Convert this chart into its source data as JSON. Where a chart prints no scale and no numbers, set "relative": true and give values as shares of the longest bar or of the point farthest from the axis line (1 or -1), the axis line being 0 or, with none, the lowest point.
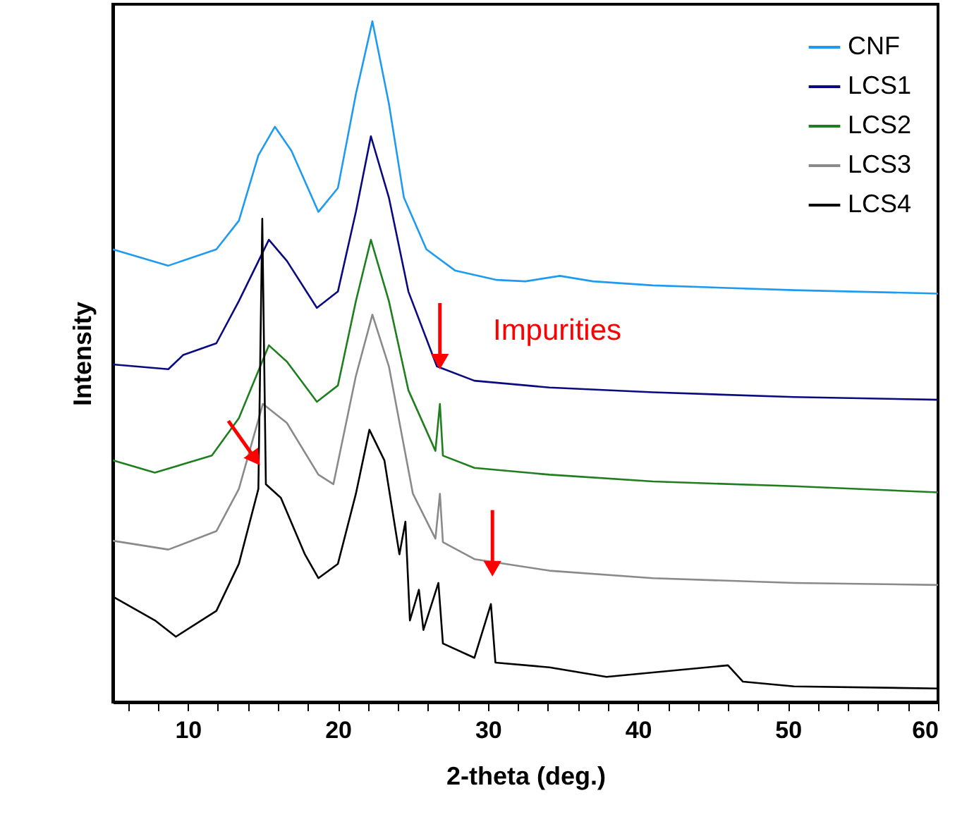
{
  "chart_data": {
    "type": "line",
    "relative": true,
    "xlabel": "2-theta (deg.)",
    "ylabel": "Intensity",
    "xlim": [
      5,
      60
    ],
    "xticks": [
      {
        "value": 6,
        "label": null
      },
      {
        "value": 8,
        "label": null
      },
      10,
      {
        "value": 12,
        "label": null
      },
      {
        "value": 14,
        "label": null
      },
      {
        "value": 16,
        "label": null
      },
      {
        "value": 18,
        "label": null
      },
      20,
      {
        "value": 22,
        "label": null
      },
      {
        "value": 24,
        "label": null
      },
      {
        "value": 26,
        "label": null
      },
      {
        "value": 28,
        "label": null
      },
      30,
      {
        "value": 32,
        "label": null
      },
      {
        "value": 34,
        "label": null
      },
      {
        "value": 36,
        "label": null
      },
      {
        "value": 38,
        "label": null
      },
      40,
      {
        "value": 42,
        "label": null
      },
      {
        "value": 44,
        "label": null
      },
      {
        "value": 46,
        "label": null
      },
      {
        "value": 48,
        "label": null
      },
      50,
      {
        "value": 52,
        "label": null
      },
      {
        "value": 54,
        "label": null
      },
      {
        "value": 56,
        "label": null
      },
      {
        "value": 58,
        "label": null
      },
      60
    ],
    "grid": false,
    "legend": "top right",
    "marker": "none",
    "line_style": "solid",
    "annotations": [
      "Impurities"
    ],
    "series": [
      {
        "name": "CNF",
        "color": "#1e9bf0",
        "x": [
          5,
          8.7,
          11.9,
          13.4,
          14.7,
          15.8,
          16.9,
          18.7,
          20,
          21.2,
          22.3,
          23.4,
          24.4,
          25.9,
          27.8,
          30.6,
          32.5,
          34.8,
          37,
          41,
          50.4,
          60
        ],
        "values": [
          0.665,
          0.641,
          0.665,
          0.707,
          0.803,
          0.845,
          0.81,
          0.72,
          0.755,
          0.893,
          1.0,
          0.879,
          0.741,
          0.665,
          0.634,
          0.62,
          0.618,
          0.626,
          0.618,
          0.612,
          0.605,
          0.6
        ]
      },
      {
        "name": "LCS1",
        "color": "#0a0a80",
        "x": [
          5,
          8.7,
          9.7,
          11.9,
          13.4,
          15.4,
          16.6,
          18.6,
          20,
          21.2,
          22.2,
          23.4,
          24.7,
          26.6,
          29.1,
          34.1,
          41,
          50.4,
          60
        ],
        "values": [
          0.496,
          0.489,
          0.51,
          0.527,
          0.589,
          0.679,
          0.648,
          0.579,
          0.603,
          0.72,
          0.831,
          0.741,
          0.603,
          0.493,
          0.472,
          0.462,
          0.455,
          0.448,
          0.444
        ]
      },
      {
        "name": "LCS2",
        "color": "#1f7f1f",
        "x": [
          5,
          7.8,
          11.6,
          13.4,
          15.4,
          16.6,
          18.6,
          20,
          21.2,
          22.2,
          23.4,
          24.7,
          26.5,
          26.8,
          27,
          29.1,
          34.1,
          41,
          50.4,
          60
        ],
        "values": [
          0.355,
          0.337,
          0.362,
          0.417,
          0.524,
          0.5,
          0.441,
          0.465,
          0.589,
          0.679,
          0.589,
          0.458,
          0.369,
          0.438,
          0.362,
          0.344,
          0.334,
          0.324,
          0.317,
          0.308
        ]
      },
      {
        "name": "LCS3",
        "color": "#8a8a8a",
        "x": [
          5,
          8.7,
          11.9,
          13.4,
          15,
          16.6,
          18.7,
          19.7,
          21.2,
          22.3,
          23.4,
          25,
          26.5,
          26.8,
          27,
          29.1,
          34.1,
          41,
          50.4,
          60
        ],
        "values": [
          0.237,
          0.224,
          0.251,
          0.313,
          0.438,
          0.41,
          0.334,
          0.32,
          0.479,
          0.569,
          0.493,
          0.306,
          0.24,
          0.306,
          0.235,
          0.21,
          0.193,
          0.182,
          0.175,
          0.172
        ]
      },
      {
        "name": "LCS4",
        "color": "#000000",
        "x": [
          5,
          7.8,
          9.2,
          11.9,
          13.4,
          14.7,
          14.96,
          15.2,
          16.2,
          17.8,
          18.7,
          20,
          21.2,
          22.1,
          23.1,
          24.1,
          24.5,
          24.8,
          25.4,
          25.7,
          26.7,
          27,
          29.1,
          30.2,
          30.5,
          34.1,
          37.9,
          46,
          47,
          50.4,
          60
        ],
        "values": [
          0.155,
          0.12,
          0.096,
          0.134,
          0.203,
          0.313,
          0.71,
          0.32,
          0.3,
          0.217,
          0.182,
          0.203,
          0.306,
          0.4,
          0.355,
          0.217,
          0.265,
          0.12,
          0.165,
          0.106,
          0.175,
          0.086,
          0.065,
          0.144,
          0.058,
          0.051,
          0.037,
          0.054,
          0.03,
          0.023,
          0.02
        ]
      }
    ]
  }
}
